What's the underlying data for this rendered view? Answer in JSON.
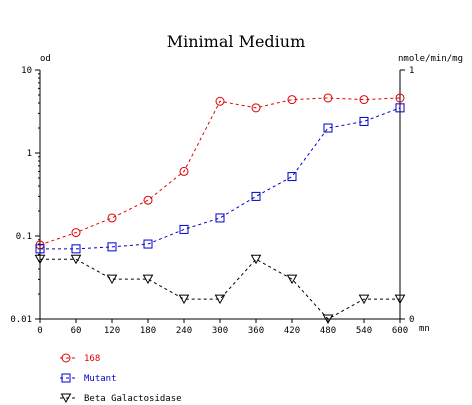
{
  "chart_data": {
    "type": "line",
    "title": "Minimal Medium",
    "xlabel": "mn",
    "ylabel_left": "od",
    "ylabel_right": "nmole/min/mg",
    "x": [
      0,
      60,
      120,
      180,
      240,
      300,
      360,
      420,
      480,
      540,
      600
    ],
    "xlim": [
      0,
      600
    ],
    "x_ticks": [
      "0",
      "60",
      "120",
      "180",
      "240",
      "300",
      "360",
      "420",
      "480",
      "540",
      "600"
    ],
    "y_left_scale": "log",
    "y_left_lim": [
      0.01,
      10
    ],
    "y_left_ticks": [
      "0.01",
      "0.1",
      "1",
      "10"
    ],
    "y_right_lim": [
      0,
      1
    ],
    "y_right_ticks": [
      "0",
      "1"
    ],
    "grid": false,
    "legend_position": "bottom-left",
    "series": [
      {
        "name": "168",
        "axis": "left",
        "marker": "circle",
        "color": "#dd0000",
        "values": [
          0.078,
          0.11,
          0.165,
          0.27,
          0.6,
          4.2,
          3.5,
          4.4,
          4.6,
          4.4,
          4.6
        ]
      },
      {
        "name": "Mutant",
        "axis": "left",
        "marker": "square",
        "color": "#0000cc",
        "values": [
          0.07,
          0.07,
          0.074,
          0.08,
          0.12,
          0.165,
          0.3,
          0.52,
          2.0,
          2.4,
          3.5
        ]
      },
      {
        "name": "Beta Galactosidase",
        "axis": "right",
        "marker": "triangle-down",
        "color": "#000000",
        "values": [
          0.24,
          0.24,
          0.16,
          0.16,
          0.08,
          0.08,
          0.24,
          0.16,
          0.0,
          0.08,
          0.08
        ]
      }
    ]
  }
}
